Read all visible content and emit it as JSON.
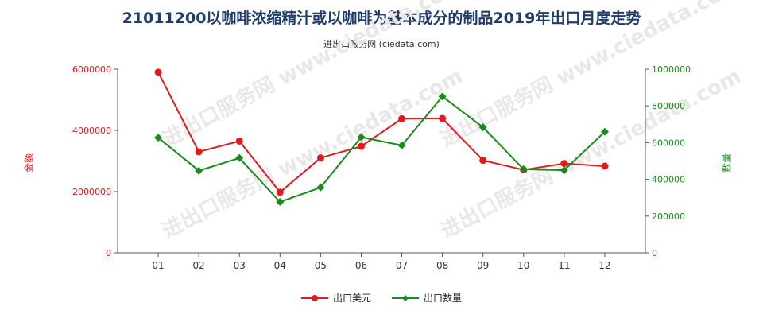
{
  "title": "21011200以咖啡浓缩精汁或以咖啡为基本成分的制品2019年出口月度走势",
  "subtitle": "进出口服务网 (ciedata.com)",
  "watermark": "进出口服务网 www.ciedata.com",
  "colors": {
    "usd": "#e31a1c",
    "qty": "#1a8a1a",
    "axis": "#333333",
    "grid": "#cccccc"
  },
  "chart_data": {
    "type": "line",
    "categories": [
      "01",
      "02",
      "03",
      "04",
      "05",
      "06",
      "07",
      "08",
      "09",
      "10",
      "11",
      "12"
    ],
    "y_left": {
      "label": "金额",
      "ylim": [
        0,
        6000000
      ],
      "ticks": [
        "0",
        "2000000",
        "4000000",
        "6000000"
      ],
      "tick_values": [
        0,
        2000000,
        4000000,
        6000000
      ]
    },
    "y_right": {
      "label": "数量",
      "ylim": [
        0,
        1000000
      ],
      "ticks": [
        "0",
        "200000",
        "400000",
        "600000",
        "800000",
        "1000000"
      ],
      "tick_values": [
        0,
        200000,
        400000,
        600000,
        800000,
        1000000
      ]
    },
    "series": [
      {
        "name": "出口美元",
        "axis": "left",
        "color": "#e31a1c",
        "values": [
          5900000,
          3300000,
          3650000,
          1980000,
          3100000,
          3480000,
          4380000,
          4390000,
          3020000,
          2710000,
          2920000,
          2830000
        ]
      },
      {
        "name": "出口数量",
        "axis": "right",
        "color": "#1a8a1a",
        "values": [
          627000,
          447000,
          516000,
          277000,
          356000,
          630000,
          585000,
          851000,
          684000,
          455000,
          450000,
          659000
        ]
      }
    ],
    "legend_position": "bottom-center",
    "grid": false
  }
}
